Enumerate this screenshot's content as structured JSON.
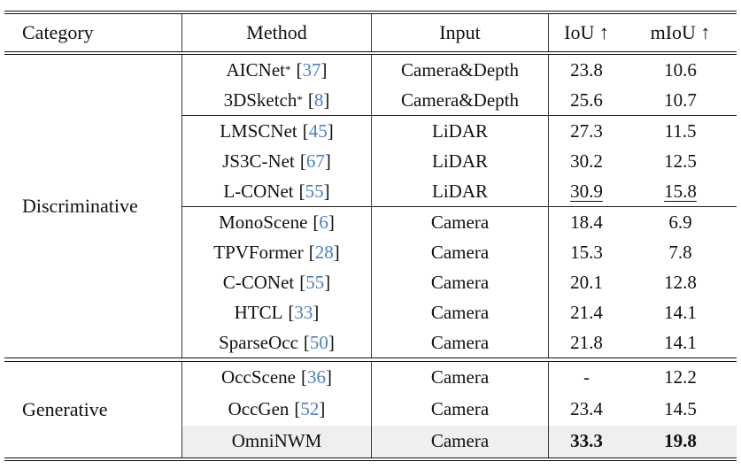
{
  "table": {
    "headers": {
      "category": "Category",
      "method": "Method",
      "input": "Input",
      "iou": "IoU ↑",
      "miou": "mIoU ↑"
    },
    "punct": {
      "open": "[",
      "close": "]"
    },
    "colors": {
      "citation_blue": "#4a7fc1",
      "highlight_row": "#efefef",
      "rule_black": "#101010"
    },
    "blocks": [
      {
        "category": "Discriminative",
        "rows": [
          {
            "method": "AICNet",
            "sup": "*",
            "cite": "37",
            "input": "Camera&Depth",
            "iou": "23.8",
            "miou": "10.6"
          },
          {
            "method": "3DSketch",
            "sup": "*",
            "cite": "8",
            "input": "Camera&Depth",
            "iou": "25.6",
            "miou": "10.7"
          },
          {
            "method": "LMSCNet",
            "cite": "45",
            "input": "LiDAR",
            "iou": "27.3",
            "miou": "11.5"
          },
          {
            "method": "JS3C-Net",
            "cite": "67",
            "input": "LiDAR",
            "iou": "30.2",
            "miou": "12.5"
          },
          {
            "method": "L-CONet",
            "cite": "55",
            "input": "LiDAR",
            "iou": "30.9",
            "miou": "15.8"
          },
          {
            "method": "MonoScene",
            "cite": "6",
            "input": "Camera",
            "iou": "18.4",
            "miou": "6.9"
          },
          {
            "method": "TPVFormer",
            "cite": "28",
            "input": "Camera",
            "iou": "15.3",
            "miou": "7.8"
          },
          {
            "method": "C-CONet",
            "cite": "55",
            "input": "Camera",
            "iou": "20.1",
            "miou": "12.8"
          },
          {
            "method": "HTCL",
            "cite": "33",
            "input": "Camera",
            "iou": "21.4",
            "miou": "14.1"
          },
          {
            "method": "SparseOcc",
            "cite": "50",
            "input": "Camera",
            "iou": "21.8",
            "miou": "14.1"
          }
        ]
      },
      {
        "category": "Generative",
        "rows": [
          {
            "method": "OccScene",
            "cite": "36",
            "input": "Camera",
            "iou": "-",
            "miou": "12.2"
          },
          {
            "method": "OccGen",
            "cite": "52",
            "input": "Camera",
            "iou": "23.4",
            "miou": "14.5"
          },
          {
            "method": "OmniNWM",
            "input": "Camera",
            "iou": "33.3",
            "miou": "19.8"
          }
        ]
      }
    ]
  }
}
